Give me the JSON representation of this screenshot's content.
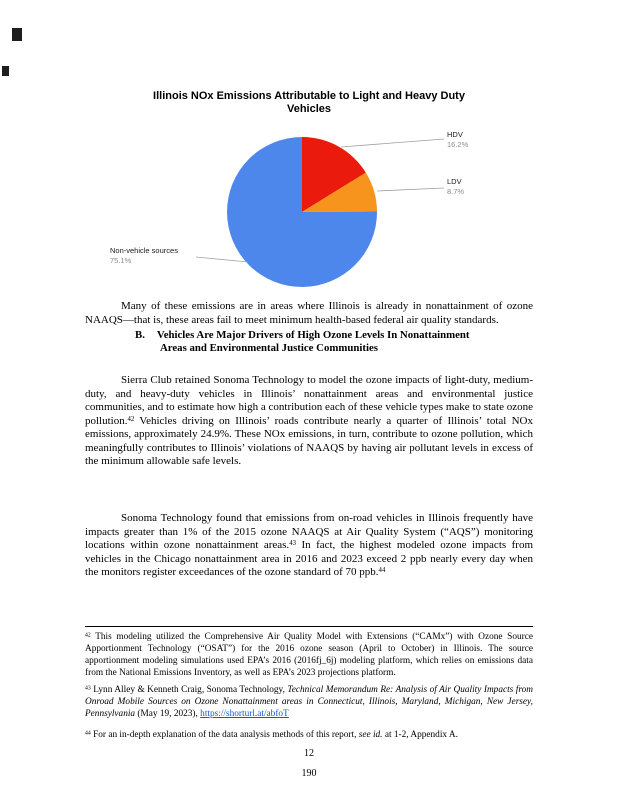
{
  "page": {
    "number": "12",
    "stamp": "190"
  },
  "chart": {
    "title_line1": "Illinois NOx Emissions Attributable to Light and Heavy Duty",
    "title_line2": "Vehicles"
  },
  "chart_data": {
    "type": "pie",
    "title": "Illinois NOx Emissions Attributable to Light and Heavy Duty Vehicles",
    "categories": [
      "HDV",
      "LDV",
      "Non-vehicle sources"
    ],
    "values": [
      16.2,
      8.7,
      75.1
    ],
    "value_labels": [
      "16.2%",
      "8.7%",
      "75.1%"
    ],
    "colors": [
      "#ea1b0c",
      "#f6941d",
      "#4e87ec"
    ],
    "start_angle_deg": 0,
    "direction": "clockwise",
    "legend_position": "none",
    "label_style": "outside-with-leader-lines"
  },
  "heading": {
    "label": "B.",
    "line1": "Vehicles Are Major Drivers of High Ozone Levels In Nonattainment",
    "line2": "Areas and Environmental Justice Communities"
  },
  "body": {
    "para1": [
      {
        "t": "Many of these emissions are in areas where Illinois is already in nonattainment of ozone NAAQS—that is, these areas fail to meet minimum health-based federal air quality standards."
      }
    ],
    "para2": [
      {
        "t": "Sierra Club retained Sonoma Technology to model the ozone impacts of light-duty, medium-duty, and heavy-duty vehicles in Illinois’ nonattainment areas and environmental justice communities, and to estimate how high a contribution each of these vehicle types make to state ozone pollution."
      },
      {
        "t": "42",
        "s": "sup"
      },
      {
        "t": " Vehicles driving on Illinois’ roads contribute nearly a quarter of Illinois’ total NOx emissions, approximately 24.9%. These NOx emissions, in turn, contribute to ozone pollution, which meaningfully contributes to Illinois’ violations of NAAQS by having air pollutant levels in excess of the minimum allowable safe levels."
      }
    ],
    "para3": [
      {
        "t": "Sonoma Technology found that emissions from on-road vehicles in Illinois frequently have impacts greater than 1% of the 2015 ozone NAAQS at Air Quality System (“AQS”) monitoring locations within ozone nonattainment areas."
      },
      {
        "t": "43",
        "s": "sup"
      },
      {
        "t": " In fact, the highest modeled ozone impacts from vehicles in the Chicago nonattainment area in 2016 and 2023 exceed 2 ppb nearly every day when the monitors register exceedances of the ozone standard of 70 ppb."
      },
      {
        "t": "44",
        "s": "sup"
      }
    ]
  },
  "footnotes": {
    "fn42": [
      {
        "t": "42",
        "s": "sup"
      },
      {
        "t": " This modeling utilized the Comprehensive Air Quality Model with Extensions (“CAMx”) with Ozone Source Apportionment Technology (“OSAT”) for the 2016 ozone season (April to October) in Illinois. The source apportionment modeling simulations used EPA’s 2016 (2016fj_6j) modeling platform, which relies on emissions data from the National Emissions Inventory, as well as EPA’s 2023 projections platform."
      }
    ],
    "fn43": [
      {
        "t": "43",
        "s": "sup"
      },
      {
        "t": " Lynn Alley & Kenneth Craig, Sonoma Technology, "
      },
      {
        "t": "Technical Memorandum Re: Analysis of Air Quality Impacts from Onroad Mobile Sources on Ozone Nonattainment areas in Connecticut, Illinois, Maryland, Michigan, New Jersey, Pennsylvania",
        "s": "i"
      },
      {
        "t": " (May 19, 2023), "
      },
      {
        "t": "https://shorturl.at/abfoT",
        "s": "link"
      }
    ],
    "fn44": [
      {
        "t": "44",
        "s": "sup"
      },
      {
        "t": " For an in-depth explanation of the data analysis methods of this report, "
      },
      {
        "t": "see id.",
        "s": "i"
      },
      {
        "t": " at 1-2, Appendix A."
      }
    ]
  }
}
